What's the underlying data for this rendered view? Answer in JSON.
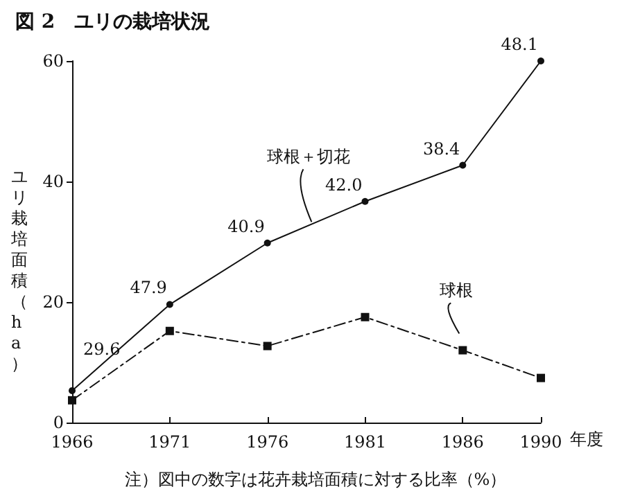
{
  "chart_data": {
    "type": "line",
    "title": "図 2　ユリの栽培状況",
    "ylabel": "ユリ栽培面積（ha）",
    "xlabel": "年度",
    "x": [
      1966,
      1971,
      1976,
      1981,
      1986,
      1990
    ],
    "xlim": [
      1966,
      1990
    ],
    "xticks": [
      1966,
      1971,
      1976,
      1981,
      1986,
      1990
    ],
    "ylim": [
      0,
      60
    ],
    "yticks": [
      0,
      20,
      40,
      60
    ],
    "series": [
      {
        "name": "球根＋切花",
        "color": "#111111",
        "marker": "circle",
        "line_style": "solid",
        "values": [
          5.3,
          19.6,
          29.8,
          36.7,
          42.7,
          60
        ]
      },
      {
        "name": "球根",
        "color": "#111111",
        "marker": "square",
        "line_style": "dashed",
        "values": [
          3.7,
          15.2,
          12.7,
          17.5,
          12,
          7.4
        ]
      }
    ],
    "annotations": [
      {
        "text": "29.6",
        "x": 1966,
        "y": 5.3
      },
      {
        "text": "47.9",
        "x": 1971,
        "y": 19.6
      },
      {
        "text": "40.9",
        "x": 1976,
        "y": 29.8
      },
      {
        "text": "42.0",
        "x": 1981,
        "y": 36.7
      },
      {
        "text": "38.4",
        "x": 1986,
        "y": 42.7
      },
      {
        "text": "48.1",
        "x": 1990,
        "y": 60
      },
      "注）図中の数字は花卉栽培面積に対する比率（%）"
    ],
    "grid": false,
    "legend": false
  }
}
